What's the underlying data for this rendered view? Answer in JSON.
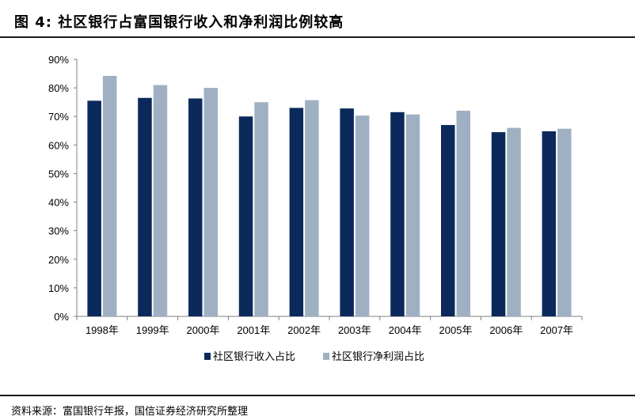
{
  "title": "图 4:  社区银行占富国银行收入和净利润比例较高",
  "source": "资料来源：富国银行年报，国信证券经济研究所整理",
  "colors": {
    "series1": "#0b2a5b",
    "series2": "#9fb0c2",
    "axis": "#808080"
  },
  "chart_data": {
    "type": "bar",
    "title": "",
    "xlabel": "",
    "ylabel": "",
    "ylim": [
      0,
      90
    ],
    "yticks": [
      "0%",
      "10%",
      "20%",
      "30%",
      "40%",
      "50%",
      "60%",
      "70%",
      "80%",
      "90%"
    ],
    "categories": [
      "1998年",
      "1999年",
      "2000年",
      "2001年",
      "2002年",
      "2003年",
      "2004年",
      "2005年",
      "2006年",
      "2007年"
    ],
    "series": [
      {
        "name": "社区银行收入占比",
        "values": [
          75.5,
          76.5,
          76.3,
          70,
          73,
          72.8,
          71.5,
          67,
          64.5,
          64.8
        ]
      },
      {
        "name": "社区银行净利润占比",
        "values": [
          84.2,
          81,
          80,
          75,
          75.7,
          70.3,
          70.7,
          72,
          66,
          65.7
        ]
      }
    ],
    "grid": false,
    "legend": "bottom"
  }
}
